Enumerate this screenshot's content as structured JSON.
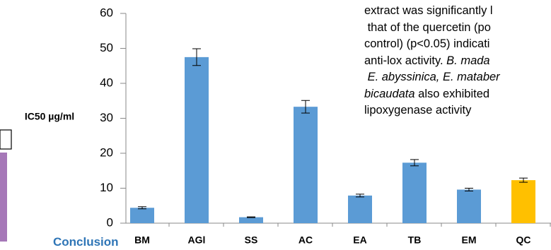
{
  "chart_data": {
    "type": "bar",
    "y_label": "IC50 µg/ml",
    "categories": [
      "BM",
      "AGl",
      "SS",
      "AC",
      "EA",
      "TB",
      "EM",
      "QC"
    ],
    "values": [
      4.4,
      47.5,
      1.7,
      33.3,
      7.9,
      17.3,
      9.6,
      12.3
    ],
    "errors": [
      0.3,
      2.4,
      0.1,
      1.8,
      0.4,
      0.9,
      0.4,
      0.6
    ],
    "colors": [
      "#5b9bd5",
      "#5b9bd5",
      "#5b9bd5",
      "#5b9bd5",
      "#5b9bd5",
      "#5b9bd5",
      "#5b9bd5",
      "#ffc000"
    ],
    "ylim": [
      0,
      60
    ],
    "yticks": [
      0,
      10,
      20,
      30,
      40,
      50,
      60
    ],
    "grid": false
  },
  "text_block": {
    "lines": [
      [
        {
          "text": "extract was significantly l",
          "style": "normal"
        }
      ],
      [
        {
          "text": " that of the quercetin (po",
          "style": "normal"
        }
      ],
      [
        {
          "text": "control) (p<0.05) indicati",
          "style": "normal"
        }
      ],
      [
        {
          "text": "anti-lox activity. ",
          "style": "normal"
        },
        {
          "text": "B. mada",
          "style": "italic"
        }
      ],
      [
        {
          "text": " E. abyssinica, E. mataber",
          "style": "italic"
        }
      ],
      [
        {
          "text": "bicaudata",
          "style": "italic"
        },
        {
          "text": " also exhibited",
          "style": "normal"
        }
      ],
      [
        {
          "text": "lipoxygenase activity",
          "style": "normal"
        }
      ]
    ]
  },
  "section": {
    "heading": "Conclusion"
  }
}
